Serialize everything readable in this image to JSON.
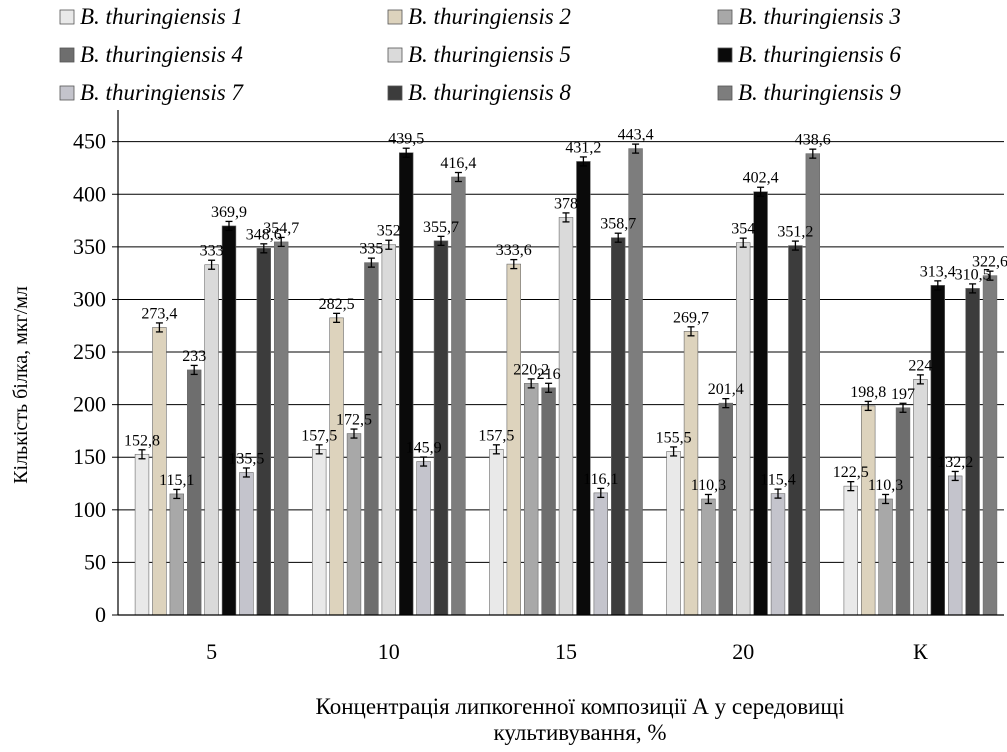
{
  "chart_data": {
    "type": "bar",
    "categories": [
      "5",
      "10",
      "15",
      "20",
      "К"
    ],
    "series": [
      {
        "name": "B. thuringiensis 1",
        "values": [
          152.8,
          157.5,
          157.5,
          155.5,
          122.5
        ]
      },
      {
        "name": "B. thuringiensis 2",
        "values": [
          273.4,
          282.5,
          333.6,
          269.7,
          198.8
        ]
      },
      {
        "name": "B. thuringiensis 3",
        "values": [
          115.1,
          172.5,
          220.2,
          110.3,
          110.3
        ]
      },
      {
        "name": "B. thuringiensis 4",
        "values": [
          233,
          335,
          216,
          201.4,
          197
        ]
      },
      {
        "name": "B. thuringiensis 5",
        "values": [
          333,
          352,
          378,
          354,
          224
        ]
      },
      {
        "name": "B. thuringiensis 6",
        "values": [
          369.9,
          439.5,
          431.2,
          402.4,
          313.4
        ]
      },
      {
        "name": "B. thuringiensis 7",
        "values": [
          135.5,
          145.9,
          116.1,
          115.4,
          132.2
        ]
      },
      {
        "name": "B. thuringiensis 8",
        "values": [
          348.6,
          355.7,
          358.7,
          351.2,
          310.5
        ]
      },
      {
        "name": "B. thuringiensis 9",
        "values": [
          354.7,
          416.4,
          443.4,
          438.6,
          322.6
        ]
      }
    ],
    "data_labels": [
      [
        "152,8",
        "273,4",
        "115,1",
        "233",
        "333",
        "369,9",
        "135,5",
        "348,6",
        "354,7"
      ],
      [
        "157,5",
        "282,5",
        "172,5",
        "335",
        "352",
        "439,5",
        "145,9",
        "355,7",
        "416,4"
      ],
      [
        "157,5",
        "333,6",
        "220,2",
        "216",
        "378",
        "431,2",
        "116,1",
        "358,7",
        "443,4"
      ],
      [
        "155,5",
        "269,7",
        "110,3",
        "201,4",
        "354",
        "402,4",
        "115,4",
        "351,2",
        "438,6"
      ],
      [
        "122,5",
        "198,8",
        "110,3",
        "197",
        "224",
        "313,4",
        "132,2",
        "310,5",
        "322,6"
      ]
    ],
    "ylabel": "Кількість білка, мкг/мл",
    "xlabel_lines": [
      "Концентрація липкогенної композиції А у середовищі",
      "культивування, %"
    ],
    "ylim": [
      0,
      450
    ],
    "yticks": [
      0,
      50,
      100,
      150,
      200,
      250,
      300,
      350,
      400,
      450
    ],
    "grid": true,
    "legend_position": "top",
    "error_bars": true,
    "colors": [
      "#e9e9e9",
      "#ddd3bd",
      "#a8a8a8",
      "#6e6e6e",
      "#dadada",
      "#0a0a0a",
      "#c4c4cc",
      "#3c3c3c",
      "#7d7d7d"
    ]
  }
}
